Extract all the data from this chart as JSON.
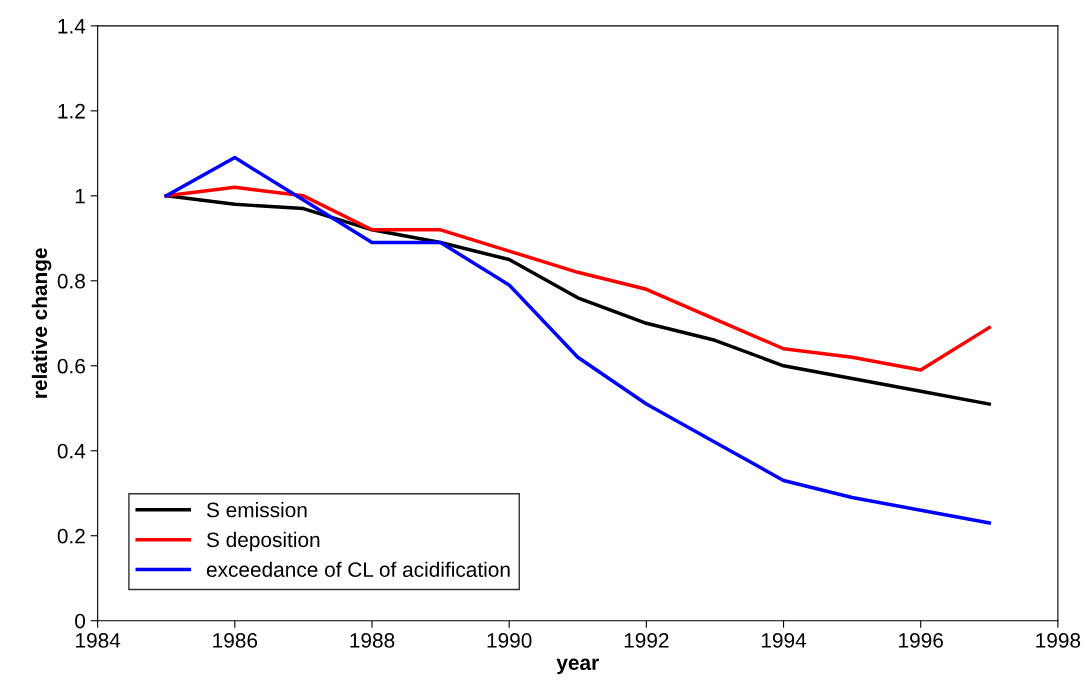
{
  "chart_data": {
    "type": "line",
    "xlabel": "year",
    "ylabel": "relative change",
    "x": [
      1985,
      1986,
      1987,
      1988,
      1989,
      1990,
      1991,
      1992,
      1993,
      1994,
      1995,
      1996,
      1997
    ],
    "series": [
      {
        "name": "S emission",
        "color": "#000000",
        "values": [
          1.0,
          0.98,
          0.97,
          0.92,
          0.89,
          0.85,
          0.76,
          0.7,
          0.66,
          0.6,
          0.57,
          0.54,
          0.51
        ]
      },
      {
        "name": "S deposition",
        "color": "#ff0000",
        "values": [
          1.0,
          1.02,
          1.0,
          0.92,
          0.92,
          0.87,
          0.82,
          0.78,
          0.71,
          0.64,
          0.62,
          0.59,
          0.69
        ]
      },
      {
        "name": "exceedance of CL of acidification",
        "color": "#0000ff",
        "values": [
          1.0,
          1.09,
          0.99,
          0.89,
          0.89,
          0.79,
          0.62,
          0.51,
          0.42,
          0.33,
          0.29,
          0.26,
          0.23
        ]
      }
    ],
    "xlim": [
      1984,
      1998
    ],
    "xticks": [
      1984,
      1986,
      1988,
      1990,
      1992,
      1994,
      1996,
      1998
    ],
    "ylim": [
      0,
      1.4
    ],
    "yticks": [
      0,
      0.2,
      0.4,
      0.6,
      0.8,
      1,
      1.2,
      1.4
    ],
    "grid": false,
    "legend": "bottom left",
    "marker": "none",
    "line_style": "solid"
  }
}
